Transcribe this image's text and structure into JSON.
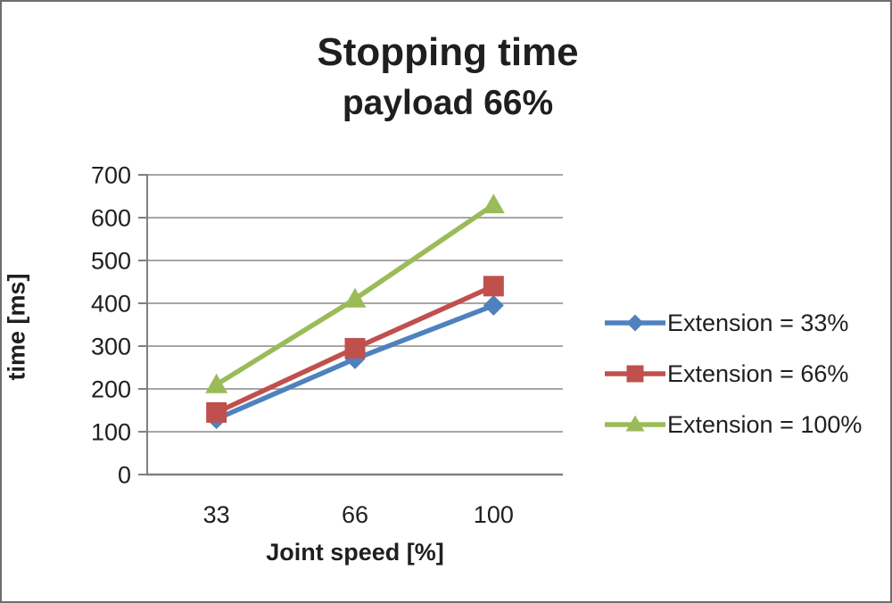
{
  "chart_data": {
    "type": "line",
    "title": "Stopping time",
    "subtitle": "payload 66%",
    "xlabel": "Joint speed [%]",
    "ylabel": "time [ms]",
    "categories": [
      "33",
      "66",
      "100"
    ],
    "ylim": [
      0,
      700
    ],
    "yticks": [
      0,
      100,
      200,
      300,
      400,
      500,
      600,
      700
    ],
    "grid": "horizontal-gridlines-on",
    "legend_position": "right",
    "series": [
      {
        "name": "Extension = 33%",
        "marker": "diamond",
        "color": "#4F81BD",
        "values": [
          130,
          270,
          395
        ]
      },
      {
        "name": "Extension = 66%",
        "marker": "square",
        "color": "#C0504D",
        "values": [
          145,
          295,
          440
        ]
      },
      {
        "name": "Extension = 100%",
        "marker": "triangle",
        "color": "#9BBB59",
        "values": [
          210,
          410,
          630
        ]
      }
    ],
    "colors": {
      "gridline": "#A6A6A6",
      "axis": "#808080",
      "text": "#1f1f1f",
      "background": "#ffffff"
    }
  }
}
